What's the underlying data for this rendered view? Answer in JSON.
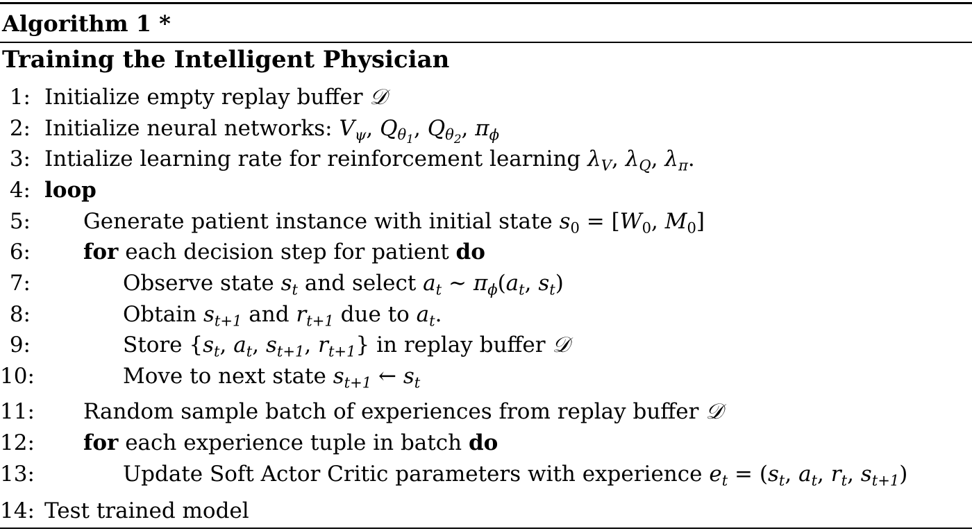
{
  "algorithm": {
    "title": "Algorithm 1 *",
    "caption": "Training the Intelligent Physician"
  },
  "lines": [
    {
      "num": "1:",
      "text": "Initialize empty replay buffer "
    },
    {
      "num": "2:",
      "text": "Initialize neural networks: "
    },
    {
      "num": "3:",
      "text": "Intialize learning rate for reinforcement learning "
    },
    {
      "num": "4:",
      "kw": "loop"
    },
    {
      "num": "5:",
      "text": "Generate patient instance with initial state "
    },
    {
      "num": "6:",
      "kw1": "for",
      "text": " each decision step for patient ",
      "kw2": "do"
    },
    {
      "num": "7:",
      "text_a": "Observe state ",
      "text_b": " and select "
    },
    {
      "num": "8:",
      "text_a": "Obtain ",
      "text_b": " and ",
      "text_c": " due to "
    },
    {
      "num": "9:",
      "text_a": "Store ",
      "text_b": " in replay buffer "
    },
    {
      "num": "10:",
      "text": "Move to next state "
    },
    {
      "num": "11:",
      "text": "Random sample batch of experiences from replay buffer "
    },
    {
      "num": "12:",
      "kw1": "for",
      "text": " each experience tuple in batch ",
      "kw2": "do"
    },
    {
      "num": "13:",
      "text": "Update Soft Actor Critic parameters with experience "
    },
    {
      "num": "14:",
      "text": "Test trained model"
    }
  ]
}
